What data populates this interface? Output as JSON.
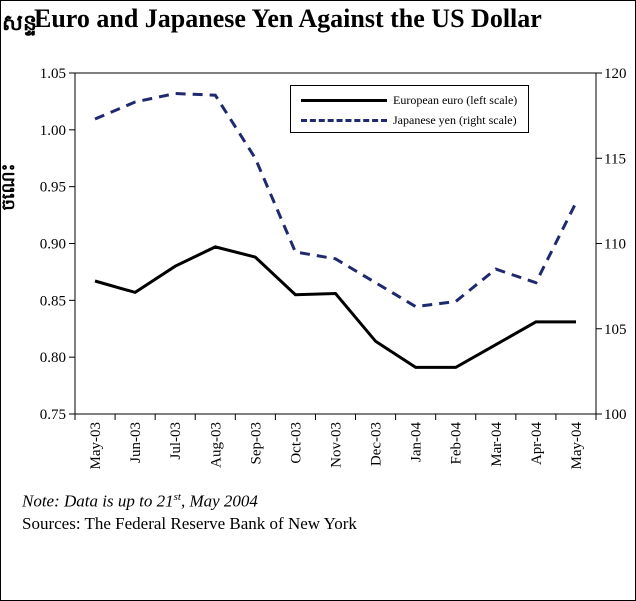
{
  "title_prefix": "សន្ទ",
  "title": "Euro and Japanese Yen Against the US Dollar",
  "note": {
    "prefix": "Note: Data is up to 21",
    "superscript": "st",
    "suffix": ", May 2004"
  },
  "sources": "Sources: The Federal Reserve Bank of New York",
  "chart_data": {
    "type": "line",
    "title": "Euro and Japanese Yen Against the US Dollar",
    "ylabel_left": "ចំណេះ",
    "categories": [
      "May-03",
      "Jun-03",
      "Jul-03",
      "Aug-03",
      "Sep-03",
      "Oct-03",
      "Nov-03",
      "Dec-03",
      "Jan-04",
      "Feb-04",
      "Mar-04",
      "Apr-04",
      "May-04"
    ],
    "y_left": {
      "lim": [
        0.75,
        1.05
      ],
      "ticks": [
        "0.75",
        "0.80",
        "0.85",
        "0.90",
        "0.95",
        "1.00",
        "1.05"
      ]
    },
    "y_right": {
      "lim": [
        100,
        120
      ],
      "ticks": [
        "100",
        "105",
        "110",
        "115",
        "120"
      ]
    },
    "series": [
      {
        "name": "European euro (left scale)",
        "axis": "left",
        "style": "solid",
        "color": "#000000",
        "values": [
          0.867,
          0.857,
          0.88,
          0.897,
          0.888,
          0.855,
          0.856,
          0.814,
          0.791,
          0.791,
          0.811,
          0.831,
          0.831
        ]
      },
      {
        "name": "Japanese yen (right scale)",
        "axis": "right",
        "style": "dashed",
        "color": "#1f2a6e",
        "values": [
          117.3,
          118.3,
          118.8,
          118.7,
          115.0,
          109.5,
          109.1,
          107.7,
          106.3,
          106.6,
          108.5,
          107.7,
          112.4
        ]
      }
    ],
    "legend_position": "top-right",
    "grid": false
  }
}
